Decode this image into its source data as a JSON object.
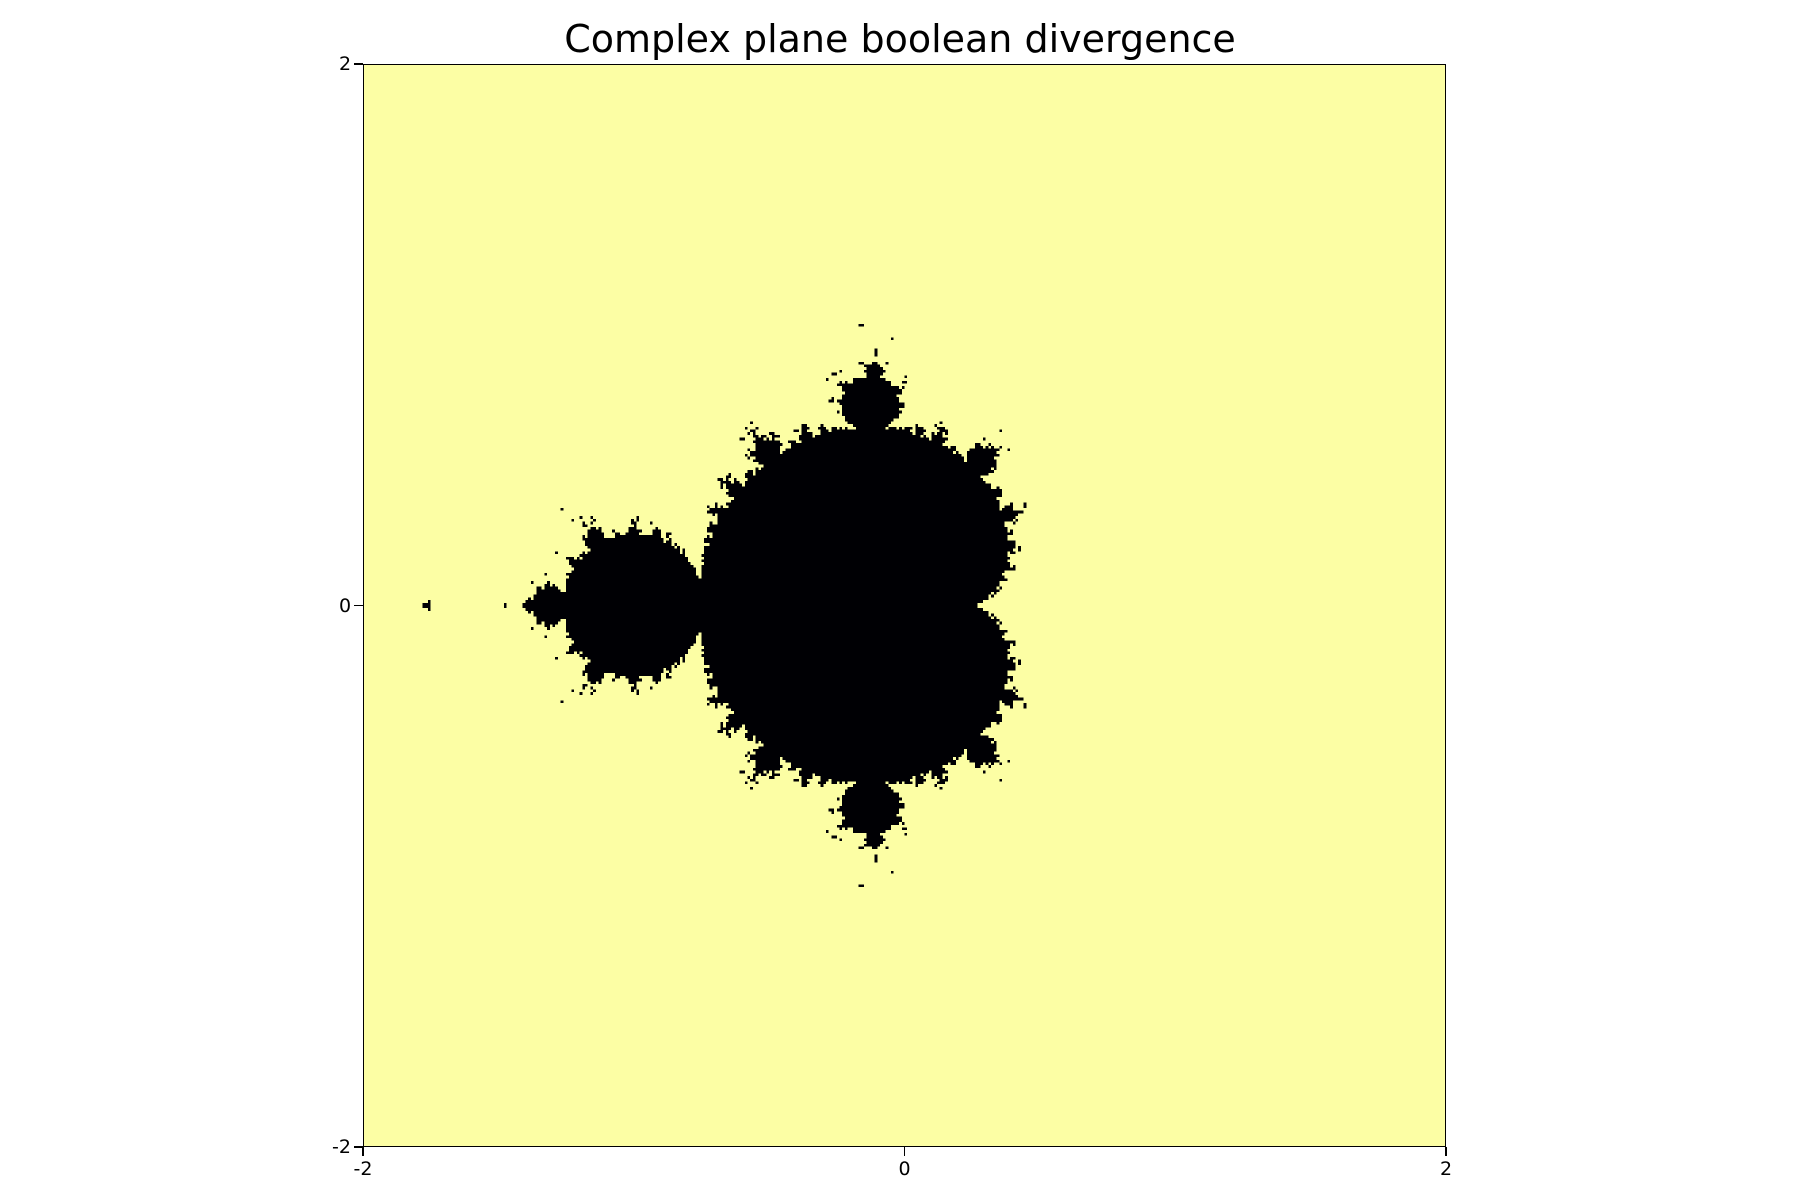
{
  "chart_data": {
    "type": "heatmap",
    "title": "Complex plane boolean divergence",
    "xlabel": "",
    "ylabel": "",
    "xlim": [
      -2,
      2
    ],
    "ylim": [
      -2,
      2
    ],
    "x_ticks": [
      "-2",
      "0",
      "2"
    ],
    "y_ticks": [
      "2",
      "0",
      "-2"
    ],
    "grid": false,
    "legend": "none",
    "resolution": 400,
    "max_iterations": 30,
    "escape_radius": 2,
    "colors": {
      "diverged": "#fcfea4",
      "bounded": "#000004"
    }
  }
}
